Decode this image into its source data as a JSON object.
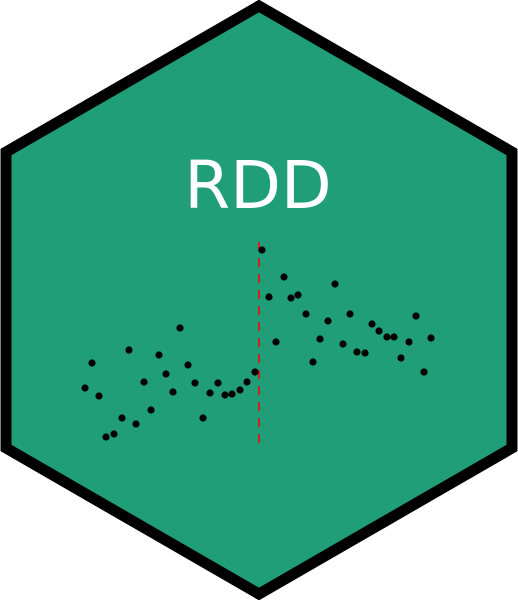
{
  "title": "RDD",
  "colors": {
    "hex_fill": "#1f9e78",
    "hex_border": "#000000",
    "title": "#ffffff",
    "points": "#000000",
    "cutoff_line": "#cc2222"
  },
  "scatter": {
    "cutoff_x": 259,
    "left_points": [
      [
        85,
        388
      ],
      [
        92,
        363
      ],
      [
        99,
        396
      ],
      [
        106,
        437
      ],
      [
        114,
        434
      ],
      [
        122,
        418
      ],
      [
        129,
        350
      ],
      [
        136,
        424
      ],
      [
        144,
        382
      ],
      [
        151,
        410
      ],
      [
        159,
        355
      ],
      [
        166,
        374
      ],
      [
        173,
        392
      ],
      [
        180,
        328
      ],
      [
        188,
        365
      ],
      [
        195,
        383
      ],
      [
        203,
        418
      ],
      [
        210,
        393
      ],
      [
        218,
        383
      ],
      [
        225,
        395
      ],
      [
        232,
        394
      ],
      [
        240,
        390
      ],
      [
        247,
        382
      ],
      [
        255,
        372
      ]
    ],
    "right_points": [
      [
        262,
        250
      ],
      [
        269,
        297
      ],
      [
        276,
        342
      ],
      [
        284,
        277
      ],
      [
        291,
        298
      ],
      [
        298,
        295
      ],
      [
        306,
        314
      ],
      [
        313,
        362
      ],
      [
        320,
        339
      ],
      [
        328,
        321
      ],
      [
        335,
        284
      ],
      [
        343,
        344
      ],
      [
        350,
        314
      ],
      [
        357,
        352
      ],
      [
        365,
        353
      ],
      [
        372,
        324
      ],
      [
        379,
        331
      ],
      [
        387,
        337
      ],
      [
        394,
        337
      ],
      [
        401,
        358
      ],
      [
        409,
        342
      ],
      [
        416,
        316
      ],
      [
        424,
        372
      ],
      [
        431,
        338
      ]
    ]
  }
}
